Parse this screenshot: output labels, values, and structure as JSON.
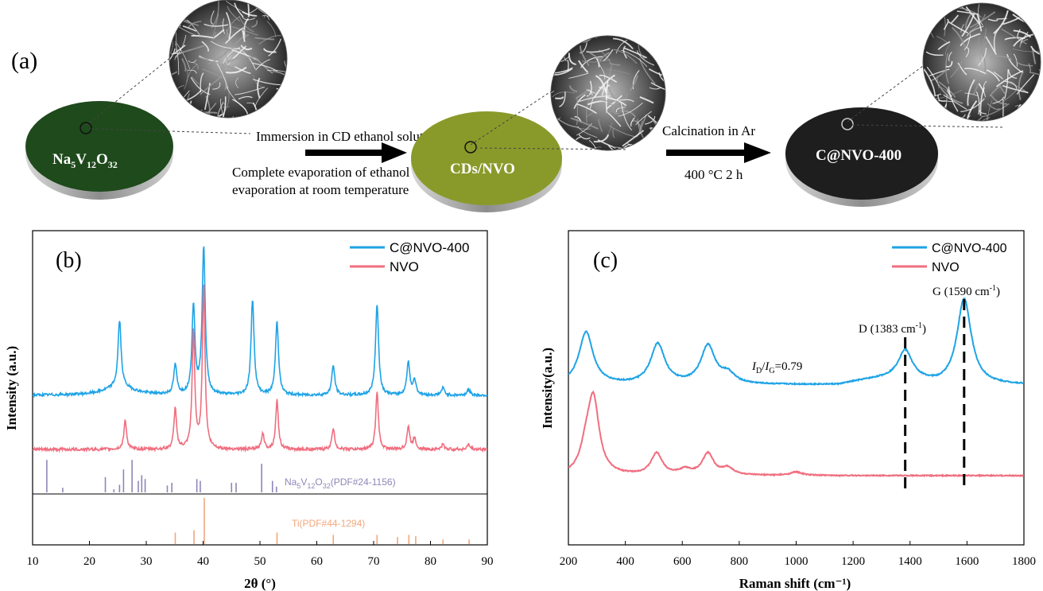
{
  "panel_a": {
    "label": "(a)",
    "disk1_label_main": "Na",
    "disk1_sub1": "5",
    "disk1_mid": "V",
    "disk1_sub2": "12",
    "disk1_end": "O",
    "disk1_sub3": "32",
    "disk2_label": "CDs/NVO",
    "disk3_label": "C@NVO-400",
    "step1_above": "Immersion in CD ethanol solution",
    "step1_below_line1": "Complete evaporation of ethanol",
    "step1_below_line2": "evaporation at room temperature",
    "step2_above": "Calcination in Ar",
    "step2_below": "400 °C 2 h",
    "colors": {
      "disk1": "#1f4a1c",
      "disk2": "#8a9a2a",
      "disk3": "#1e1e1e"
    }
  },
  "chart_data": [
    {
      "type": "line",
      "panel_label": "(b)",
      "xlabel": "2θ (°)",
      "ylabel": "Intensity (a.u.)",
      "xlim": [
        10,
        90
      ],
      "xticks": [
        10,
        20,
        30,
        40,
        50,
        60,
        70,
        80,
        90
      ],
      "legend_position": "top-right",
      "series": [
        {
          "name": "C@NVO-400",
          "color": "#1fa3e6",
          "peaks": [
            [
              25.3,
              0.45
            ],
            [
              35.1,
              0.2
            ],
            [
              38.3,
              0.6
            ],
            [
              40.1,
              1.0
            ],
            [
              48.7,
              0.65
            ],
            [
              53.0,
              0.5
            ],
            [
              62.9,
              0.2
            ],
            [
              70.6,
              0.62
            ],
            [
              76.1,
              0.22
            ],
            [
              77.2,
              0.1
            ],
            [
              82.2,
              0.05
            ],
            [
              86.7,
              0.04
            ]
          ]
        },
        {
          "name": "NVO",
          "color": "#f06e7f",
          "peaks": [
            [
              26.3,
              0.18
            ],
            [
              35.1,
              0.25
            ],
            [
              38.3,
              0.72
            ],
            [
              40.1,
              1.0
            ],
            [
              50.5,
              0.1
            ],
            [
              53.0,
              0.3
            ],
            [
              62.9,
              0.13
            ],
            [
              70.6,
              0.35
            ],
            [
              76.1,
              0.14
            ],
            [
              77.2,
              0.07
            ],
            [
              82.2,
              0.03
            ],
            [
              86.7,
              0.03
            ]
          ]
        }
      ],
      "references": [
        {
          "label_main": "Na",
          "sub1": "5",
          "mid": "V",
          "sub2": "12",
          "end": "O",
          "sub3": "32",
          "suffix": "(PDF#24-1156)",
          "color": "#8e86b8",
          "sticks": [
            [
              12.5,
              0.85
            ],
            [
              15.3,
              0.12
            ],
            [
              22.8,
              0.4
            ],
            [
              24.3,
              0.08
            ],
            [
              25.3,
              0.2
            ],
            [
              26.0,
              0.6
            ],
            [
              27.5,
              0.85
            ],
            [
              28.6,
              0.3
            ],
            [
              29.2,
              0.45
            ],
            [
              29.8,
              0.35
            ],
            [
              33.7,
              0.18
            ],
            [
              34.5,
              0.25
            ],
            [
              38.9,
              0.35
            ],
            [
              39.5,
              0.3
            ],
            [
              45.0,
              0.25
            ],
            [
              45.8,
              0.25
            ],
            [
              50.3,
              0.75
            ],
            [
              52.2,
              0.3
            ],
            [
              52.9,
              0.15
            ]
          ]
        },
        {
          "label": "Ti(PDF#44-1294)",
          "color": "#f3a67c",
          "sticks": [
            [
              35.1,
              0.25
            ],
            [
              38.4,
              0.3
            ],
            [
              40.2,
              1.0
            ],
            [
              53.0,
              0.25
            ],
            [
              62.9,
              0.2
            ],
            [
              70.6,
              0.2
            ],
            [
              74.2,
              0.15
            ],
            [
              76.2,
              0.2
            ],
            [
              77.4,
              0.17
            ],
            [
              82.2,
              0.1
            ],
            [
              86.8,
              0.1
            ]
          ]
        }
      ]
    },
    {
      "type": "line",
      "panel_label": "(c)",
      "xlabel": "Raman shift (cm⁻¹)",
      "ylabel": "Intensity(a.u.)",
      "xlim": [
        200,
        1800
      ],
      "xticks": [
        200,
        400,
        600,
        800,
        1000,
        1200,
        1400,
        1600,
        1800
      ],
      "legend_position": "top-right",
      "series": [
        {
          "name": "C@NVO-400",
          "color": "#1fa3e6",
          "peaks": [
            [
              262,
              0.55
            ],
            [
              514,
              0.42
            ],
            [
              690,
              0.4
            ],
            [
              760,
              0.1
            ],
            [
              1383,
              0.3
            ],
            [
              1590,
              0.9
            ]
          ]
        },
        {
          "name": "NVO",
          "color": "#f06e7f",
          "peaks": [
            [
              262,
              0.25
            ],
            [
              288,
              0.85
            ],
            [
              510,
              0.25
            ],
            [
              610,
              0.06
            ],
            [
              690,
              0.25
            ],
            [
              760,
              0.08
            ],
            [
              1000,
              0.04
            ]
          ]
        }
      ],
      "annotations": {
        "d_band_prefix": "D (1383 cm",
        "d_band_sup": "-1",
        "d_band_suffix": ")",
        "g_band_prefix": "G (1590 cm",
        "g_band_sup": "-1",
        "g_band_suffix": ")",
        "ratio_i": "I",
        "ratio_d": "D",
        "ratio_slash": "/",
        "ratio_g": "G",
        "ratio_value": "=0.79",
        "d_position": 1383,
        "g_position": 1590
      }
    }
  ]
}
